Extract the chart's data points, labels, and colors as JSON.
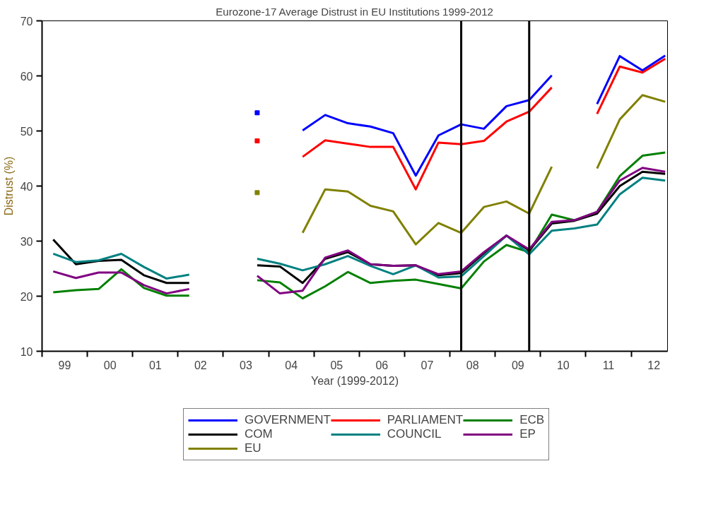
{
  "chart_data": {
    "type": "line",
    "title": "Eurozone-17 Average Distrust in EU Institutions 1999-2012",
    "xlabel": "Year (1999-2012)",
    "ylabel": "Distrust (%)",
    "x": [
      "1999-04",
      "1999-10",
      "2000-04",
      "2000-10",
      "2001-04",
      "2001-10",
      "2002-04",
      "2002-10",
      "2003-04",
      "2003-10",
      "2004-04",
      "2004-10",
      "2005-04",
      "2005-10",
      "2006-04",
      "2006-10",
      "2007-04",
      "2007-10",
      "2008-04",
      "2008-10",
      "2009-04",
      "2009-10",
      "2010-04",
      "2010-10",
      "2011-04",
      "2011-10",
      "2012-04",
      "2012-10"
    ],
    "series": [
      {
        "name": "GOVERNMENT",
        "color": "#0000ff",
        "values": [
          null,
          null,
          null,
          null,
          null,
          null,
          null,
          null,
          null,
          53.3,
          null,
          50.1,
          52.9,
          51.4,
          50.8,
          49.6,
          41.9,
          49.2,
          51.2,
          50.4,
          54.5,
          55.6,
          60.1,
          null,
          54.9,
          63.6,
          61.0,
          63.7
        ]
      },
      {
        "name": "PARLIAMENT",
        "color": "#ff0000",
        "values": [
          null,
          null,
          null,
          null,
          null,
          null,
          null,
          null,
          null,
          48.2,
          null,
          45.3,
          48.3,
          47.7,
          47.1,
          47.1,
          39.4,
          47.9,
          47.6,
          48.2,
          51.7,
          53.5,
          57.9,
          null,
          53.1,
          61.7,
          60.6,
          63.1
        ]
      },
      {
        "name": "ECB",
        "color": "#008000",
        "values": [
          20.7,
          21.1,
          21.3,
          24.9,
          21.5,
          20.1,
          20.1,
          null,
          null,
          22.9,
          22.5,
          19.6,
          21.8,
          24.4,
          22.4,
          22.8,
          23.0,
          22.2,
          21.4,
          26.3,
          29.3,
          28.0,
          34.8,
          33.8,
          35.3,
          41.8,
          45.5,
          46.1
        ]
      },
      {
        "name": "COM",
        "color": "#000000",
        "values": [
          30.3,
          25.8,
          26.4,
          26.6,
          23.8,
          22.4,
          22.4,
          null,
          null,
          25.6,
          25.4,
          22.4,
          26.8,
          28.0,
          25.8,
          25.5,
          25.6,
          23.8,
          24.2,
          27.8,
          31.0,
          28.3,
          33.2,
          33.7,
          35.0,
          40.0,
          42.6,
          42.2
        ]
      },
      {
        "name": "COUNCIL",
        "color": "#008080",
        "values": [
          27.7,
          26.2,
          26.5,
          27.7,
          25.3,
          23.2,
          23.9,
          null,
          null,
          26.8,
          25.9,
          24.7,
          25.8,
          27.3,
          25.5,
          24.0,
          25.6,
          23.4,
          23.6,
          27.3,
          31.0,
          27.6,
          31.9,
          32.3,
          33.0,
          38.5,
          41.5,
          41.0
        ]
      },
      {
        "name": "EP",
        "color": "#800080",
        "values": [
          24.5,
          23.3,
          24.3,
          24.3,
          22.0,
          20.5,
          21.3,
          null,
          null,
          23.7,
          20.5,
          21.0,
          27.0,
          28.3,
          25.8,
          25.5,
          25.6,
          24.0,
          24.5,
          28.0,
          31.0,
          28.5,
          33.5,
          33.8,
          35.3,
          41.0,
          43.3,
          42.6
        ]
      },
      {
        "name": "EU",
        "color": "#808000",
        "values": [
          null,
          null,
          null,
          null,
          null,
          null,
          null,
          null,
          null,
          38.8,
          null,
          31.5,
          39.4,
          39.0,
          36.4,
          35.4,
          29.4,
          33.3,
          31.5,
          36.2,
          37.2,
          35.0,
          43.5,
          null,
          43.2,
          52.1,
          56.5,
          55.3
        ]
      }
    ],
    "xlim": [
      "1999-01-01",
      "2012-10-20"
    ],
    "xticks": [
      {
        "value": "1999-01-01",
        "label": null
      },
      {
        "value": "1999-07-02",
        "label": "99"
      },
      {
        "value": "2000-01-01",
        "label": null
      },
      {
        "value": "2000-07-02",
        "label": "00"
      },
      {
        "value": "2001-01-01",
        "label": null
      },
      {
        "value": "2001-07-02",
        "label": "01"
      },
      {
        "value": "2002-01-01",
        "label": null
      },
      {
        "value": "2002-07-02",
        "label": "02"
      },
      {
        "value": "2003-01-01",
        "label": null
      },
      {
        "value": "2003-07-02",
        "label": "03"
      },
      {
        "value": "2004-01-01",
        "label": null
      },
      {
        "value": "2004-07-02",
        "label": "04"
      },
      {
        "value": "2005-01-01",
        "label": null
      },
      {
        "value": "2005-07-02",
        "label": "05"
      },
      {
        "value": "2006-01-01",
        "label": null
      },
      {
        "value": "2006-07-02",
        "label": "06"
      },
      {
        "value": "2007-01-01",
        "label": null
      },
      {
        "value": "2007-07-02",
        "label": "07"
      },
      {
        "value": "2008-01-01",
        "label": null
      },
      {
        "value": "2008-07-02",
        "label": "08"
      },
      {
        "value": "2009-01-01",
        "label": null
      },
      {
        "value": "2009-07-02",
        "label": "09"
      },
      {
        "value": "2010-01-01",
        "label": null
      },
      {
        "value": "2010-07-02",
        "label": "10"
      },
      {
        "value": "2011-01-01",
        "label": null
      },
      {
        "value": "2011-07-02",
        "label": "11"
      },
      {
        "value": "2012-01-01",
        "label": null
      },
      {
        "value": "2012-07-02",
        "label": "12"
      }
    ],
    "ylim": [
      10,
      70
    ],
    "yticks": [
      10,
      20,
      30,
      40,
      50,
      60,
      70
    ],
    "ref_lines": [
      {
        "axis": "x",
        "value": "2008-04",
        "color": "#000000"
      },
      {
        "axis": "x",
        "value": "2009-10",
        "color": "#000000"
      }
    ],
    "legend": "bottom"
  }
}
